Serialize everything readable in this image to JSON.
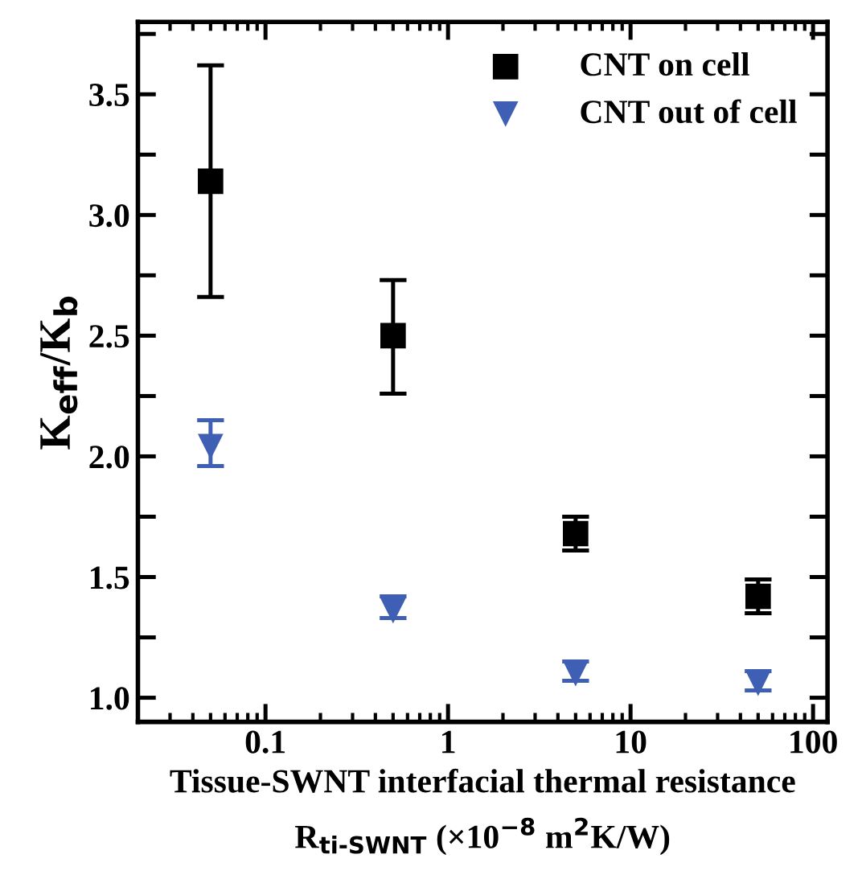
{
  "chart_data": {
    "type": "scatter",
    "xlabel": "Tissue-SWNT interfacial thermal resistance\nR$_{ti-SWNT}$ (×10$^{−8}$ m$^{2}$K/W)",
    "ylabel": "K$_{eff}$/K$_{b}$",
    "x": [
      0.05,
      0.5,
      5,
      50
    ],
    "series": [
      {
        "name": "CNT on cell",
        "color": "#000000",
        "marker": "square",
        "values": [
          3.14,
          2.5,
          1.68,
          1.42
        ],
        "errors": [
          [
            2.66,
            3.62
          ],
          [
            2.26,
            2.73
          ],
          [
            1.61,
            1.75
          ],
          [
            1.35,
            1.49
          ]
        ]
      },
      {
        "name": "CNT out of cell",
        "color": "#3f5fb5",
        "marker": "triangle",
        "values": [
          2.04,
          1.36,
          1.1,
          1.06
        ],
        "errors": [
          [
            1.96,
            2.15
          ],
          [
            1.33,
            1.42
          ],
          [
            1.07,
            1.15
          ],
          [
            1.03,
            1.11
          ]
        ]
      }
    ],
    "log": "x",
    "xlim": [
      0.02,
      120
    ],
    "xticks": [
      0.1,
      1,
      10,
      100
    ],
    "ylim": [
      0.9,
      3.8
    ],
    "yticks": [
      {
        "value": 1,
        "label": "1.0"
      },
      {
        "value": 1.25,
        "label": null
      },
      1.5,
      {
        "value": 1.75,
        "label": null
      },
      {
        "value": 2,
        "label": "2.0"
      },
      {
        "value": 2.25,
        "label": null
      },
      2.5,
      {
        "value": 2.75,
        "label": null
      },
      {
        "value": 3,
        "label": "3.0"
      },
      {
        "value": 3.25,
        "label": null
      },
      3.5,
      {
        "value": 3.75,
        "label": null
      }
    ],
    "grid": false,
    "legend": "top right"
  }
}
